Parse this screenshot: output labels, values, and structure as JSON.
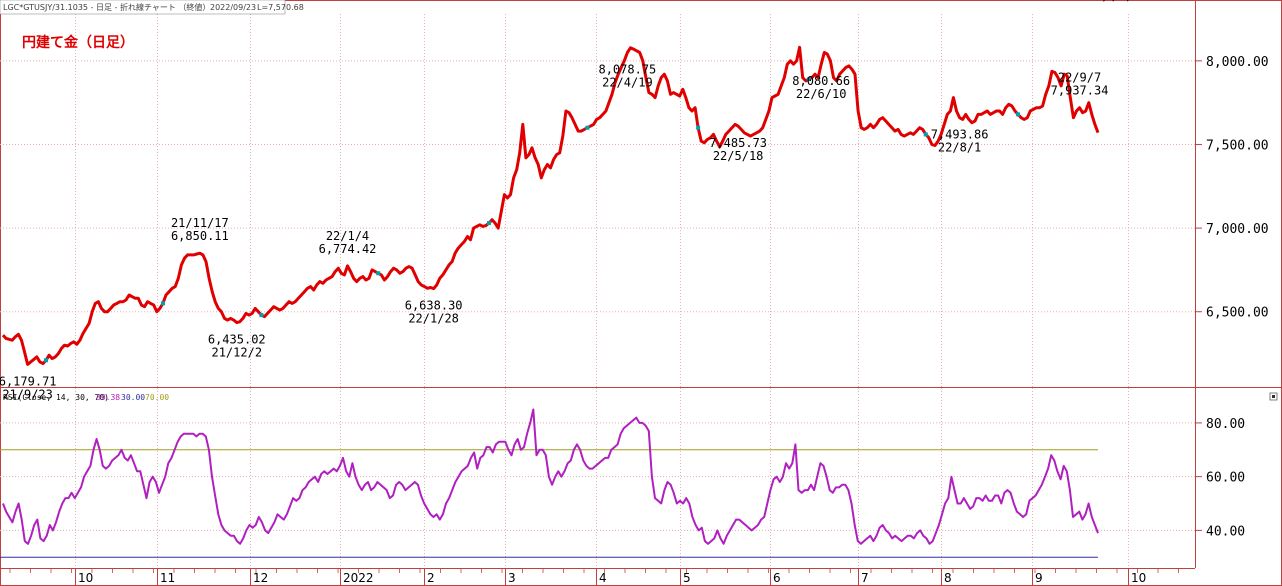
{
  "header": {
    "symbol": "LGC*GTUSJY/31.1035 - 日足 - 折れ線チャート （終値）",
    "date": "2022/09/23",
    "last": "L=7,570.68"
  },
  "chart_data": [
    {
      "type": "line",
      "title": "円建て金（日足）",
      "x_tick_labels": [
        "10",
        "11",
        "12",
        "2022",
        "2",
        "3",
        "4",
        "5",
        "6",
        "7",
        "8",
        "9",
        "10"
      ],
      "y_ticks": [
        "6,500.00",
        "7,000.00",
        "7,500.00",
        "8,000.00"
      ],
      "ylim": [
        6050,
        8280
      ],
      "grid": true,
      "colors": {
        "line": "#e00000",
        "title": "#e00000",
        "marker": "#00a0b0"
      },
      "series": [
        {
          "values": [
            6360,
            6340,
            6335,
            6330,
            6350,
            6365,
            6330,
            6260,
            6185,
            6200,
            6215,
            6230,
            6200,
            6190,
            6210,
            6240,
            6220,
            6230,
            6250,
            6280,
            6300,
            6295,
            6310,
            6320,
            6305,
            6330,
            6370,
            6400,
            6430,
            6500,
            6550,
            6560,
            6520,
            6500,
            6500,
            6520,
            6540,
            6550,
            6560,
            6560,
            6570,
            6600,
            6590,
            6580,
            6580,
            6540,
            6530,
            6560,
            6550,
            6540,
            6500,
            6520,
            6550,
            6600,
            6620,
            6640,
            6650,
            6700,
            6780,
            6820,
            6840,
            6840,
            6840,
            6845,
            6850,
            6840,
            6800,
            6700,
            6620,
            6560,
            6520,
            6500,
            6460,
            6450,
            6460,
            6450,
            6435,
            6440,
            6460,
            6490,
            6480,
            6490,
            6520,
            6500,
            6480,
            6470,
            6490,
            6510,
            6530,
            6520,
            6510,
            6520,
            6540,
            6560,
            6550,
            6560,
            6580,
            6600,
            6620,
            6640,
            6650,
            6630,
            6660,
            6680,
            6670,
            6690,
            6700,
            6710,
            6740,
            6760,
            6730,
            6720,
            6774,
            6740,
            6700,
            6680,
            6700,
            6710,
            6690,
            6700,
            6750,
            6740,
            6730,
            6720,
            6690,
            6710,
            6740,
            6760,
            6750,
            6730,
            6740,
            6760,
            6770,
            6760,
            6720,
            6680,
            6660,
            6650,
            6640,
            6645,
            6638,
            6660,
            6700,
            6720,
            6750,
            6780,
            6800,
            6850,
            6880,
            6900,
            6920,
            6950,
            6930,
            7000,
            7010,
            7020,
            7010,
            7015,
            7030,
            7050,
            7030,
            7000,
            7100,
            7200,
            7180,
            7200,
            7300,
            7350,
            7450,
            7620,
            7420,
            7440,
            7480,
            7420,
            7380,
            7300,
            7350,
            7380,
            7360,
            7410,
            7440,
            7450,
            7550,
            7700,
            7690,
            7660,
            7620,
            7580,
            7580,
            7590,
            7600,
            7610,
            7620,
            7650,
            7660,
            7680,
            7700,
            7750,
            7800,
            7870,
            7920,
            7960,
            8000,
            8050,
            8078,
            8070,
            8060,
            8050,
            8000,
            7900,
            7810,
            7800,
            7780,
            7850,
            7900,
            7920,
            7880,
            7800,
            7810,
            7800,
            7790,
            7830,
            7780,
            7720,
            7700,
            7720,
            7600,
            7520,
            7510,
            7530,
            7540,
            7560,
            7520,
            7486,
            7520,
            7560,
            7580,
            7600,
            7620,
            7610,
            7590,
            7570,
            7560,
            7550,
            7560,
            7570,
            7580,
            7600,
            7650,
            7700,
            7780,
            7790,
            7800,
            7850,
            7900,
            7980,
            8000,
            7980,
            8000,
            8081,
            7900,
            7880,
            7890,
            7900,
            7920,
            7900,
            7980,
            8050,
            8040,
            8000,
            7900,
            7880,
            7920,
            7940,
            7960,
            7970,
            7950,
            7920,
            7700,
            7600,
            7590,
            7600,
            7620,
            7600,
            7620,
            7650,
            7660,
            7640,
            7620,
            7600,
            7580,
            7590,
            7560,
            7550,
            7560,
            7570,
            7560,
            7580,
            7600,
            7590,
            7560,
            7540,
            7500,
            7494,
            7520,
            7560,
            7620,
            7680,
            7700,
            7780,
            7700,
            7660,
            7650,
            7680,
            7650,
            7630,
            7640,
            7680,
            7680,
            7690,
            7700,
            7680,
            7690,
            7700,
            7700,
            7680,
            7720,
            7740,
            7730,
            7700,
            7680,
            7660,
            7650,
            7660,
            7700,
            7710,
            7720,
            7720,
            7730,
            7800,
            7850,
            7937,
            7930,
            7900,
            7850,
            7920,
            7910,
            7780,
            7660,
            7700,
            7720,
            7690,
            7700,
            7750,
            7680,
            7620,
            7571
          ]
        }
      ],
      "annotations": [
        {
          "label": "21/9/23",
          "value": "6,179.71",
          "index": 8
        },
        {
          "label": "21/11/17",
          "value": "6,850.11",
          "index": 64
        },
        {
          "label": "21/12/2",
          "value": "6,435.02",
          "index": 76
        },
        {
          "label": "22/1/4",
          "value": "6,774.42",
          "index": 112
        },
        {
          "label": "22/1/28",
          "value": "6,638.30",
          "index": 140
        },
        {
          "label": "22/4/19",
          "value": "8,078.75",
          "index": 203
        },
        {
          "label": "22/5/18",
          "value": "7,485.73",
          "index": 239
        },
        {
          "label": "22/6/10",
          "value": "8,080.66",
          "index": 266
        },
        {
          "label": "22/8/1",
          "value": "7,493.86",
          "index": 311
        },
        {
          "label": "22/9/7",
          "value": "7,937.34",
          "index": 350
        },
        {
          "label": "22/9/23",
          "value": "7,570.68",
          "index": 364
        }
      ],
      "markers": [
        14,
        52,
        84,
        122,
        158,
        190,
        226,
        262,
        300,
        330
      ]
    },
    {
      "type": "line",
      "legend": {
        "name": "RSI(Close, 14, 30, 70)",
        "value": "39.38",
        "lower": "30.00",
        "upper": "70.00"
      },
      "y_ticks": [
        "40.00",
        "60.00",
        "80.00"
      ],
      "ylim": [
        26,
        93
      ],
      "grid": true,
      "colors": {
        "line": "#b020c0",
        "upper": "#a0a020",
        "lower": "#3030a0",
        "legend_name": "#000000",
        "legend_value": "#b020c0",
        "legend_lower": "#3030a0",
        "legend_upper": "#a0a020"
      },
      "levels": [
        70,
        30
      ],
      "series": [
        {
          "values": [
            50,
            47,
            45,
            43,
            47,
            50,
            44,
            36,
            35,
            38,
            42,
            44,
            37,
            36,
            38,
            42,
            40,
            43,
            47,
            50,
            52,
            52,
            54,
            52,
            54,
            56,
            60,
            62,
            64,
            70,
            74,
            70,
            64,
            63,
            64,
            66,
            67,
            68,
            70,
            67,
            66,
            68,
            65,
            62,
            62,
            57,
            52,
            58,
            60,
            58,
            54,
            57,
            60,
            65,
            67,
            70,
            73,
            75,
            76,
            76,
            76,
            76,
            75,
            76,
            76,
            75,
            70,
            60,
            53,
            46,
            42,
            40,
            39,
            38,
            38,
            36,
            35,
            37,
            40,
            42,
            41,
            42,
            45,
            43,
            40,
            39,
            41,
            43,
            46,
            45,
            44,
            46,
            49,
            52,
            51,
            52,
            55,
            56,
            58,
            59,
            60,
            58,
            61,
            62,
            61,
            62,
            63,
            62,
            64,
            67,
            62,
            60,
            65,
            60,
            57,
            55,
            57,
            58,
            55,
            56,
            58,
            57,
            56,
            55,
            52,
            53,
            57,
            58,
            57,
            55,
            56,
            57,
            58,
            57,
            53,
            50,
            48,
            46,
            45,
            46,
            44,
            46,
            50,
            52,
            55,
            58,
            60,
            62,
            63,
            64,
            67,
            69,
            63,
            67,
            68,
            71,
            71,
            69,
            72,
            73,
            73,
            73,
            70,
            68,
            72,
            74,
            70,
            71,
            76,
            80,
            85,
            68,
            70,
            70,
            68,
            60,
            57,
            60,
            62,
            60,
            62,
            65,
            66,
            70,
            72,
            70,
            66,
            64,
            63,
            63,
            64,
            65,
            66,
            67,
            67,
            70,
            71,
            72,
            76,
            78,
            79,
            80,
            81,
            82,
            80,
            80,
            79,
            77,
            60,
            52,
            51,
            50,
            55,
            58,
            57,
            54,
            50,
            51,
            50,
            52,
            50,
            45,
            42,
            40,
            41,
            36,
            35,
            36,
            37,
            40,
            37,
            35,
            38,
            40,
            42,
            44,
            44,
            43,
            42,
            41,
            40,
            41,
            42,
            44,
            45,
            50,
            55,
            59,
            60,
            58,
            60,
            65,
            63,
            65,
            72,
            55,
            54,
            55,
            55,
            57,
            55,
            60,
            65,
            64,
            60,
            55,
            54,
            56,
            56,
            57,
            57,
            55,
            50,
            42,
            36,
            35,
            36,
            37,
            38,
            36,
            38,
            41,
            42,
            40,
            39,
            37,
            38,
            37,
            36,
            37,
            38,
            38,
            37,
            39,
            40,
            38,
            37,
            35,
            36,
            39,
            42,
            46,
            50,
            52,
            60,
            55,
            50,
            50,
            52,
            50,
            48,
            49,
            52,
            52,
            51,
            53,
            51,
            51,
            53,
            53,
            50,
            54,
            55,
            54,
            50,
            47,
            46,
            45,
            46,
            51,
            52,
            53,
            55,
            57,
            60,
            63,
            68,
            66,
            62,
            59,
            64,
            62,
            55,
            45,
            46,
            47,
            44,
            46,
            50,
            45,
            42,
            39
          ]
        }
      ]
    }
  ]
}
